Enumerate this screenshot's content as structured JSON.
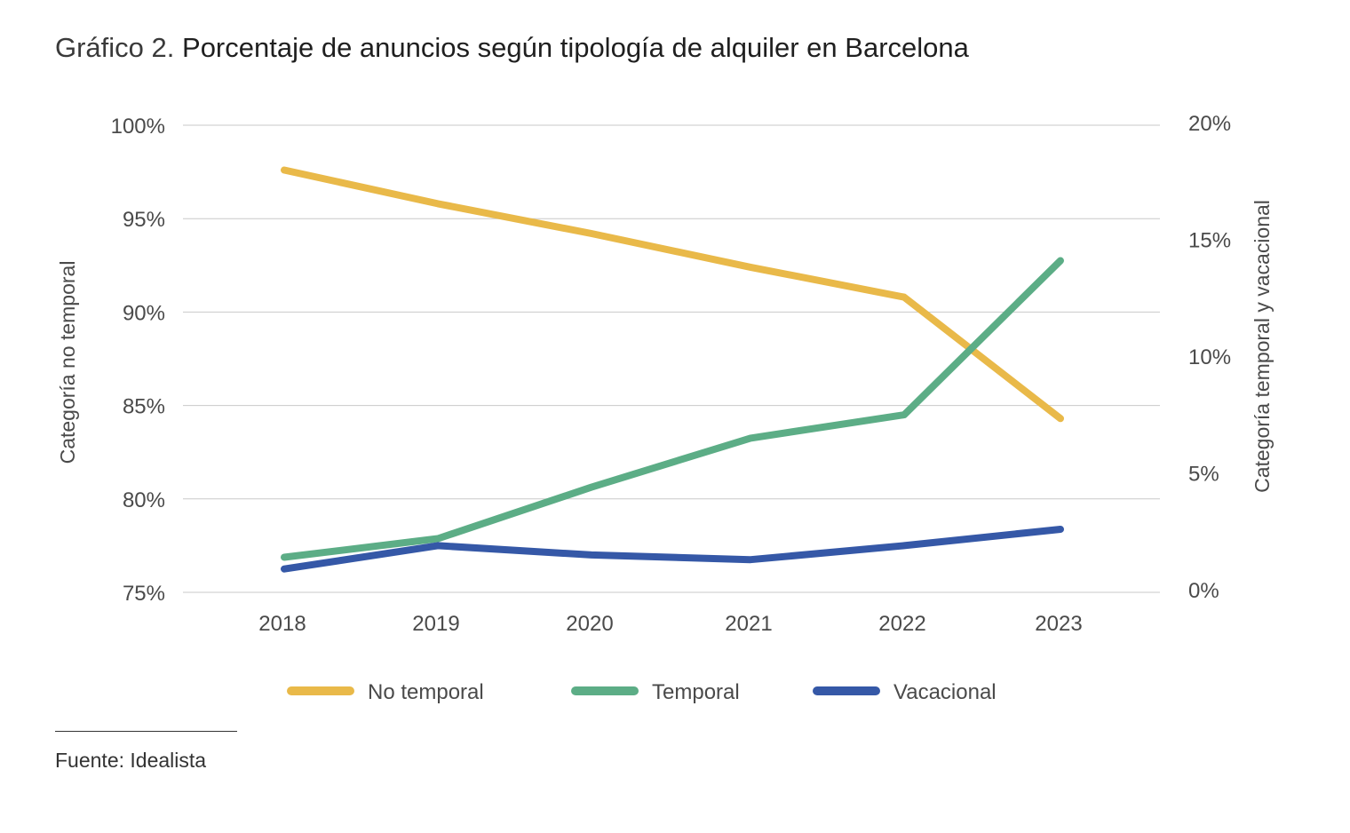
{
  "title": {
    "prefix": "Gráfico 2.",
    "main": "Porcentaje de anuncios según tipología de alquiler en Barcelona"
  },
  "source": "Fuente: Idealista",
  "chart_data": {
    "type": "line",
    "title": "Gráfico 2. Porcentaje de anuncios según tipología de alquiler en Barcelona",
    "x": [
      "2018",
      "2019",
      "2020",
      "2021",
      "2022",
      "2023"
    ],
    "y_left": {
      "label": "Categoría no temporal",
      "ticks": [
        "75%",
        "80%",
        "85%",
        "90%",
        "95%",
        "100%"
      ],
      "range": [
        75,
        100
      ]
    },
    "y_right": {
      "label": "Categoría temporal y vacacional",
      "ticks": [
        "0%",
        "5%",
        "10%",
        "15%",
        "20%"
      ],
      "range": [
        0,
        20
      ]
    },
    "grid": true,
    "legend_position": "bottom",
    "series": [
      {
        "name": "No temporal",
        "axis": "left",
        "color": "#E9B949",
        "values": [
          97.6,
          95.8,
          94.2,
          92.4,
          90.8,
          84.3
        ]
      },
      {
        "name": "Temporal",
        "axis": "right",
        "color": "#5CAD86",
        "values": [
          1.5,
          2.3,
          4.5,
          6.6,
          7.6,
          14.2
        ]
      },
      {
        "name": "Vacacional",
        "axis": "right",
        "color": "#3558A7",
        "values": [
          1.0,
          2.0,
          1.6,
          1.4,
          2.0,
          2.7
        ]
      }
    ]
  }
}
